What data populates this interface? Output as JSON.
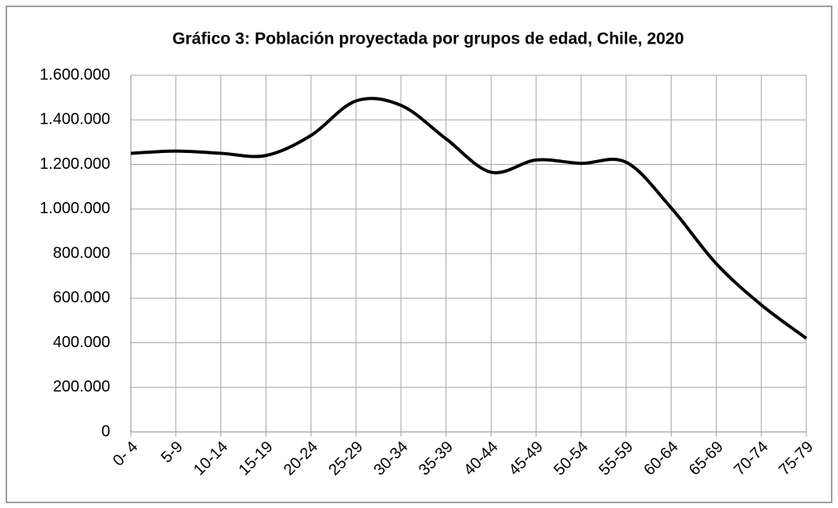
{
  "chart_data": {
    "type": "line",
    "title": "Gráfico 3: Población proyectada por grupos de edad, Chile, 2020",
    "categories": [
      "0- 4",
      "5-9",
      "10-14",
      "15-19",
      "20-24",
      "25-29",
      "30-34",
      "35-39",
      "40-44",
      "45-49",
      "50-54",
      "55-59",
      "60-64",
      "65-69",
      "70-74",
      "75-79"
    ],
    "series": [
      {
        "name": "Población",
        "color": "#000000",
        "values": [
          1250000,
          1260000,
          1250000,
          1240000,
          1330000,
          1485000,
          1465000,
          1315000,
          1165000,
          1220000,
          1205000,
          1210000,
          1005000,
          755000,
          570000,
          420000
        ]
      }
    ],
    "ylim": [
      0,
      1600000
    ],
    "yticks": [
      0,
      {
        "value": 200000,
        "label": "200.000"
      },
      {
        "value": 400000,
        "label": "400.000"
      },
      {
        "value": 600000,
        "label": "600.000"
      },
      {
        "value": 800000,
        "label": "800.000"
      },
      {
        "value": 1000000,
        "label": "1.000.000"
      },
      {
        "value": 1200000,
        "label": "1.200.000"
      },
      {
        "value": 1400000,
        "label": "1.400.000"
      },
      {
        "value": 1600000,
        "label": "1.600.000"
      }
    ],
    "grid": true,
    "smooth": true
  }
}
